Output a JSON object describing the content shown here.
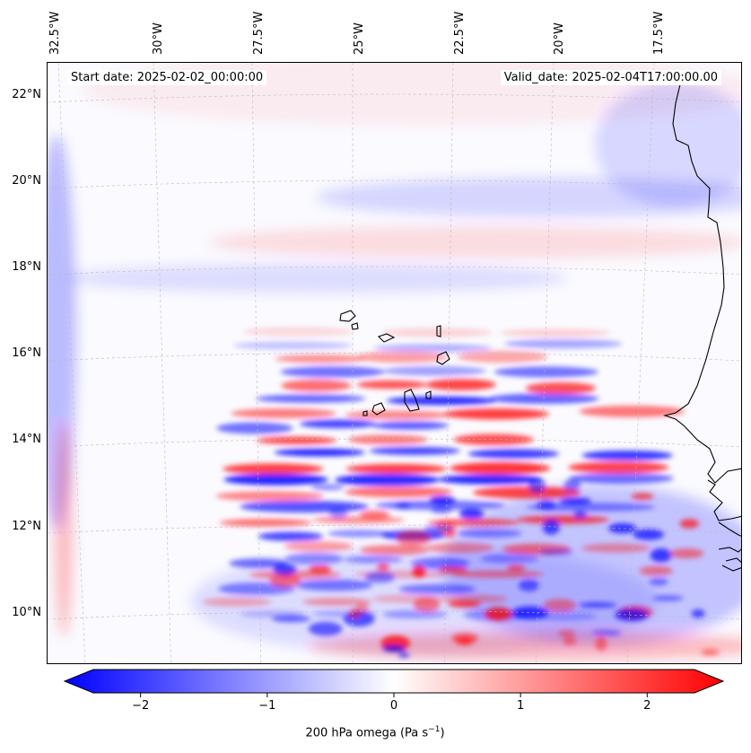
{
  "map": {
    "start_label": "Start date: 2025-02-02_00:00:00",
    "valid_label": "Valid_date: 2025-02-04T17:00:00.00",
    "lon_labels": [
      "32.5°W",
      "30°W",
      "27.5°W",
      "25°W",
      "22.5°W",
      "20°W",
      "17.5°W"
    ],
    "lat_labels": [
      "22°N",
      "20°N",
      "18°N",
      "16°N",
      "14°N",
      "12°N",
      "10°N"
    ],
    "field_variable": "200 hPa omega",
    "colors": {
      "negative": "#0000ff",
      "zero": "#ffffff",
      "positive": "#ff0000",
      "coast": "#000000",
      "grid": "#bbbbbb"
    }
  },
  "colorbar": {
    "ticks": [
      "−2",
      "−1",
      "0",
      "1",
      "2"
    ],
    "label": "200 hPa omega (Pa s",
    "label_exp": "−1",
    "label_close": ")",
    "range": [
      -2.6,
      2.6
    ]
  }
}
